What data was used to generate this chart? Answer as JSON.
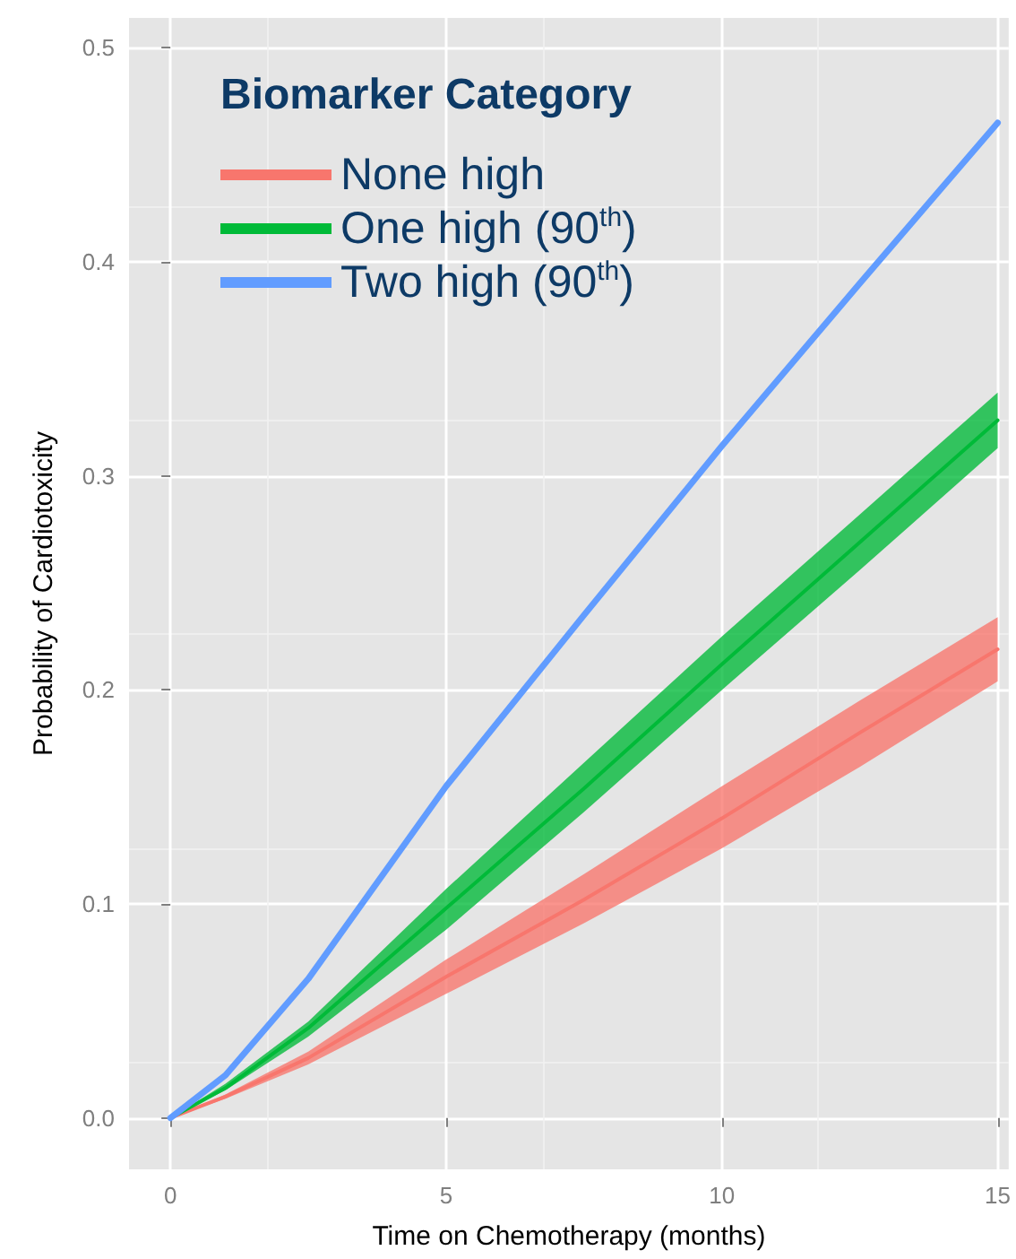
{
  "chart_data": {
    "type": "line",
    "xlabel": "Time on Chemotherapy (months)",
    "ylabel": "Probability of Cardiotoxicity",
    "legend_title": "Biomarker Category",
    "x": [
      0,
      1,
      2.5,
      5,
      7.5,
      10,
      12.5,
      15
    ],
    "series": [
      {
        "name": "None high",
        "color": "#f8766d",
        "values": [
          0,
          0.01,
          0.028,
          0.066,
          0.102,
          0.14,
          0.18,
          0.219
        ],
        "lower": [
          0,
          0.009,
          0.025,
          0.058,
          0.091,
          0.126,
          0.164,
          0.204
        ],
        "upper": [
          0,
          0.011,
          0.031,
          0.074,
          0.114,
          0.155,
          0.195,
          0.234
        ]
      },
      {
        "name": "One high (90$^{th}$)",
        "color": "#00ba38",
        "values": [
          0,
          0.014,
          0.042,
          0.098,
          0.154,
          0.212,
          0.269,
          0.326
        ],
        "lower": [
          0,
          0.013,
          0.038,
          0.088,
          0.143,
          0.2,
          0.256,
          0.313
        ],
        "upper": [
          0,
          0.016,
          0.045,
          0.107,
          0.166,
          0.225,
          0.282,
          0.339
        ]
      },
      {
        "name": "Two high (90$^{th}$)",
        "color": "#619cff",
        "values": [
          0,
          0.02,
          0.065,
          0.155,
          0.235,
          0.314,
          0.39,
          0.465
        ]
      }
    ],
    "xlim": [
      -0.75,
      15.2
    ],
    "xticks": [
      0,
      5,
      10,
      15
    ],
    "ylim": [
      -0.024,
      0.514
    ],
    "yticks": [
      {
        "value": 0,
        "label": "0.0"
      },
      {
        "value": 0.1,
        "label": "0.1"
      },
      {
        "value": 0.2,
        "label": "0.2"
      },
      {
        "value": 0.3,
        "label": "0.3"
      },
      {
        "value": 0.4,
        "label": "0.4"
      },
      {
        "value": 0.5,
        "label": "0.5"
      }
    ],
    "grid": true,
    "legend": "top left",
    "marker": "none",
    "line_style": "solid"
  }
}
